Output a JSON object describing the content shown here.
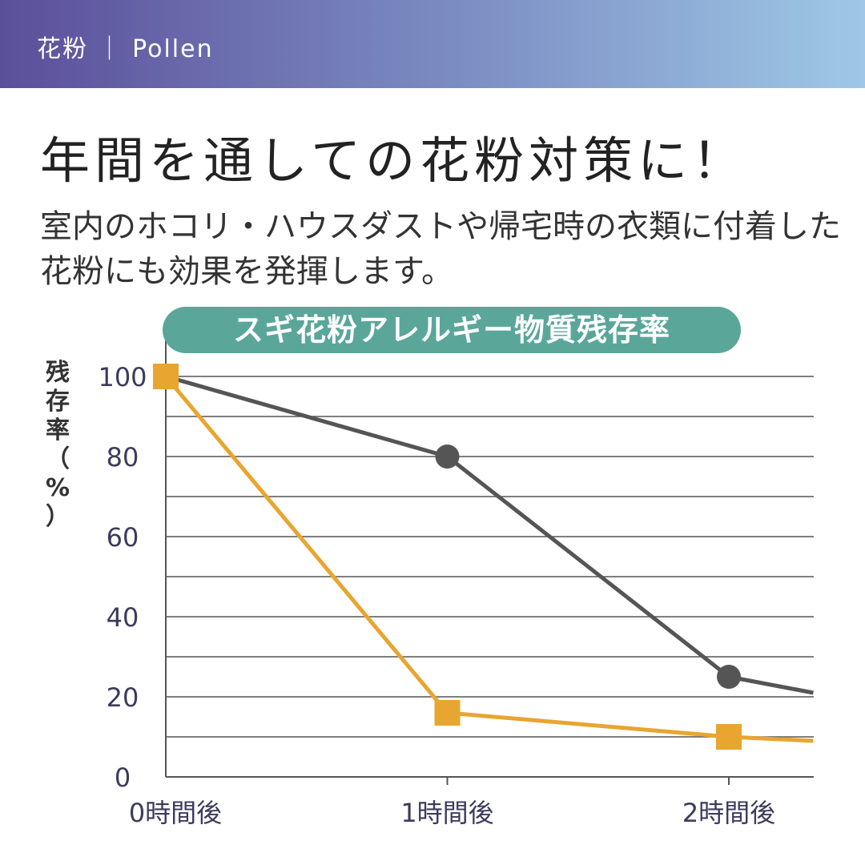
{
  "header": {
    "label": "花粉 ｜ Pollen"
  },
  "headline": "年間を通しての花粉対策に！",
  "subtext": {
    "line1": "室内のホコリ・ハウスダストや帰宅時の衣類に付着した",
    "line2": "花粉にも効果を発揮します。"
  },
  "colors": {
    "header_start": "#5b4f9a",
    "header_end": "#9ec8e6",
    "pill": "#5aa79a",
    "series_gray": "#555555",
    "series_orange": "#e8a530"
  },
  "chart_data": {
    "type": "line",
    "title": "スギ花粉アレルギー物質残存率",
    "ylabel": "残存率（%）",
    "xlabel": "",
    "categories": [
      "0時間後",
      "1時間後",
      "2時間後"
    ],
    "x": [
      0,
      1,
      2
    ],
    "x_range": [
      0,
      2.3
    ],
    "ylim": [
      0,
      100
    ],
    "yticks": [
      0,
      20,
      40,
      60,
      80,
      100
    ],
    "grid": true,
    "series": [
      {
        "marker": "circle",
        "x": [
          0,
          1,
          2,
          2.3
        ],
        "values": [
          100,
          80,
          25,
          21
        ],
        "color": "#555555"
      },
      {
        "marker": "square",
        "x": [
          0,
          1,
          2,
          2.3
        ],
        "values": [
          100,
          16,
          10,
          9
        ],
        "color": "#e8a530"
      }
    ]
  }
}
